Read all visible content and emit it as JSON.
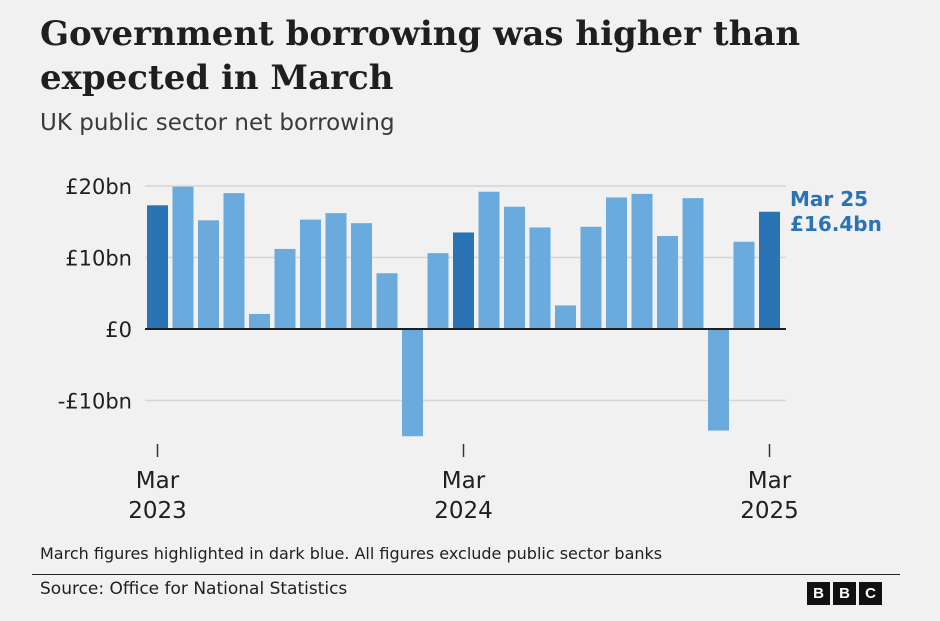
{
  "header": {
    "title": "Government borrowing was higher than expected in March",
    "subtitle": "UK public sector net borrowing"
  },
  "footer": {
    "note": "March figures highlighted in dark blue. All figures exclude public sector banks",
    "source": "Source: Office for National Statistics",
    "logo_letters": [
      "B",
      "B",
      "C"
    ]
  },
  "colors": {
    "bar": "#6aaadc",
    "march_bar": "#2a74b6",
    "grid": "#d6d6d6",
    "zero_line": "#1f1f1f",
    "callout": "#2a74b6"
  },
  "chart_data": {
    "type": "bar",
    "title": "",
    "xlabel": "",
    "ylabel": "",
    "ylim": [
      -15,
      20
    ],
    "y_ticks": [
      {
        "value": 20,
        "label": "£20bn"
      },
      {
        "value": 10,
        "label": "£10bn"
      },
      {
        "value": 0,
        "label": "£0"
      },
      {
        "value": -10,
        "label": "-£10bn"
      }
    ],
    "x_ticks": [
      {
        "month": "Mar",
        "year": "2023",
        "index": 0
      },
      {
        "month": "Mar",
        "year": "2024",
        "index": 12
      },
      {
        "month": "Mar",
        "year": "2025",
        "index": 24
      }
    ],
    "grid": true,
    "values": [
      17.3,
      19.9,
      15.2,
      19.0,
      2.1,
      11.2,
      15.3,
      16.2,
      14.8,
      7.8,
      -15.0,
      10.6,
      13.5,
      19.2,
      17.1,
      14.2,
      3.3,
      14.3,
      18.4,
      18.9,
      13.0,
      18.3,
      -14.2,
      12.2,
      16.4
    ],
    "highlighted": [
      true,
      false,
      false,
      false,
      false,
      false,
      false,
      false,
      false,
      false,
      false,
      false,
      true,
      false,
      false,
      false,
      false,
      false,
      false,
      false,
      false,
      false,
      false,
      false,
      true
    ],
    "annotation": {
      "line1": "Mar 25",
      "line2": "£16.4bn",
      "index": 24
    }
  }
}
